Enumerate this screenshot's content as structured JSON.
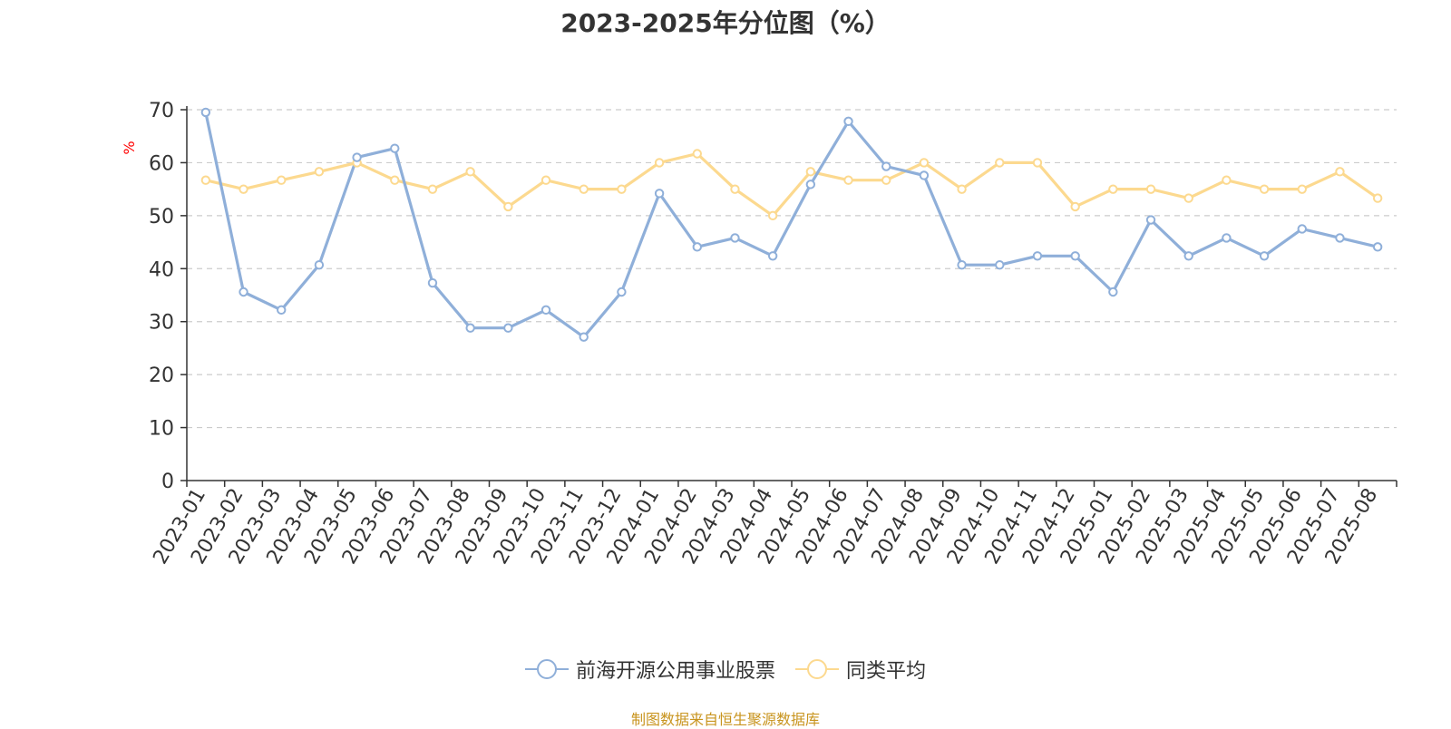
{
  "chart_data": {
    "type": "line",
    "title": "2023-2025年分位图（%）",
    "ylabel": "%",
    "xlabel": "",
    "ylim": [
      0,
      70
    ],
    "yticks": [
      0,
      10,
      20,
      30,
      40,
      50,
      60,
      70
    ],
    "grid": true,
    "legend_position": "bottom",
    "categories": [
      "2023-01",
      "2023-02",
      "2023-03",
      "2023-04",
      "2023-05",
      "2023-06",
      "2023-07",
      "2023-08",
      "2023-09",
      "2023-10",
      "2023-11",
      "2023-12",
      "2024-01",
      "2024-02",
      "2024-03",
      "2024-04",
      "2024-05",
      "2024-06",
      "2024-07",
      "2024-08",
      "2024-09",
      "2024-10",
      "2024-11",
      "2024-12",
      "2025-01",
      "2025-02",
      "2025-03",
      "2025-04",
      "2025-05",
      "2025-06",
      "2025-07",
      "2025-08"
    ],
    "series": [
      {
        "name": "前海开源公用事业股票",
        "color": "#8fafd9",
        "values": [
          69.5,
          35.6,
          32.2,
          40.7,
          61.0,
          62.7,
          37.3,
          28.8,
          28.8,
          32.2,
          27.1,
          35.6,
          54.2,
          44.1,
          45.8,
          42.4,
          55.9,
          67.8,
          59.3,
          57.6,
          40.7,
          40.7,
          42.4,
          42.4,
          35.6,
          49.2,
          42.4,
          45.8,
          42.4,
          47.5,
          45.8,
          44.1
        ]
      },
      {
        "name": "同类平均",
        "color": "#fcd98f",
        "values": [
          56.7,
          55.0,
          56.7,
          58.3,
          60.0,
          56.7,
          55.0,
          58.3,
          51.7,
          56.7,
          55.0,
          55.0,
          60.0,
          61.7,
          55.0,
          50.0,
          58.3,
          56.7,
          56.7,
          60.0,
          55.0,
          60.0,
          60.0,
          51.7,
          55.0,
          55.0,
          53.3,
          56.7,
          55.0,
          55.0,
          58.3,
          53.3
        ]
      }
    ]
  },
  "source_note": "制图数据来自恒生聚源数据库",
  "colors": {
    "axis": "#333333",
    "grid": "#cccccc",
    "ylabel": "#ff0000",
    "source": "#c8941e"
  }
}
